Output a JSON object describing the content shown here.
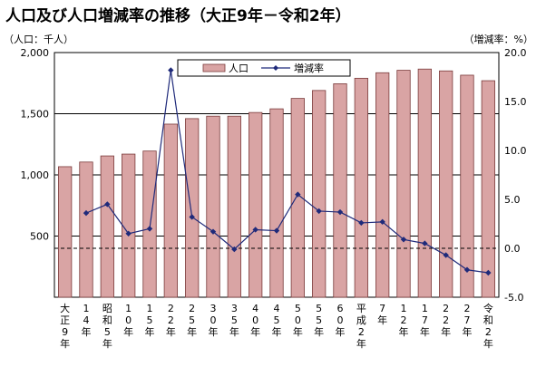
{
  "title": "人口及び人口増減率の推移（大正9年－令和2年）",
  "unit_left": "（人口：千人）",
  "unit_right": "（増減率：%）",
  "colors": {
    "bar_fill": "#d9a4a4",
    "bar_stroke": "#7a3a3a",
    "line": "#1f2a7a",
    "marker": "#1f2a7a",
    "grid": "#000000"
  },
  "chart_data": {
    "type": "bar",
    "categories": [
      "大正9年",
      "14年",
      "昭和5年",
      "10年",
      "15年",
      "22年",
      "25年",
      "30年",
      "35年",
      "40年",
      "45年",
      "50年",
      "55年",
      "60年",
      "平成2年",
      "7年",
      "12年",
      "17年",
      "22年",
      "27年",
      "令和2年"
    ],
    "tick_labels": [
      [
        "大",
        "正",
        "9",
        "年"
      ],
      [
        "1",
        "4",
        "年"
      ],
      [
        "昭",
        "和",
        "5",
        "年"
      ],
      [
        "1",
        "0",
        "年"
      ],
      [
        "1",
        "5",
        "年"
      ],
      [
        "2",
        "2",
        "年"
      ],
      [
        "2",
        "5",
        "年"
      ],
      [
        "3",
        "0",
        "年"
      ],
      [
        "3",
        "5",
        "年"
      ],
      [
        "4",
        "0",
        "年"
      ],
      [
        "4",
        "5",
        "年"
      ],
      [
        "5",
        "0",
        "年"
      ],
      [
        "5",
        "5",
        "年"
      ],
      [
        "6",
        "0",
        "年"
      ],
      [
        "平",
        "成",
        "2",
        "年"
      ],
      [
        "7",
        "年"
      ],
      [
        "1",
        "2",
        "年"
      ],
      [
        "1",
        "7",
        "年"
      ],
      [
        "2",
        "2",
        "年"
      ],
      [
        "2",
        "7",
        "年"
      ],
      [
        "令",
        "和",
        "2",
        "年"
      ]
    ],
    "series": [
      {
        "name": "人口",
        "type": "bar",
        "axis": "left",
        "values": [
          1067,
          1105,
          1155,
          1170,
          1195,
          1415,
          1460,
          1480,
          1480,
          1510,
          1540,
          1625,
          1690,
          1745,
          1790,
          1835,
          1855,
          1865,
          1850,
          1815,
          1770
        ]
      },
      {
        "name": "増減率",
        "type": "line",
        "axis": "right",
        "values": [
          null,
          3.6,
          4.5,
          1.5,
          2.0,
          18.2,
          3.2,
          1.7,
          -0.1,
          1.9,
          1.8,
          5.5,
          3.8,
          3.7,
          2.6,
          2.7,
          0.9,
          0.5,
          -0.7,
          -2.2,
          -2.5
        ]
      }
    ],
    "left_axis": {
      "min": 0,
      "max": 2000,
      "ticks": [
        500,
        1000,
        1500,
        2000
      ],
      "tick_labels": [
        "500",
        "1,000",
        "1,500",
        "2,000"
      ]
    },
    "right_axis": {
      "min": -5.0,
      "max": 20.0,
      "ticks": [
        -5.0,
        0.0,
        5.0,
        10.0,
        15.0,
        20.0
      ],
      "tick_labels": [
        "-5.0",
        "0.0",
        "5.0",
        "10.0",
        "15.0",
        "20.0"
      ]
    },
    "grid": true,
    "zero_line_dashed": true,
    "legend_position": "top-center"
  }
}
